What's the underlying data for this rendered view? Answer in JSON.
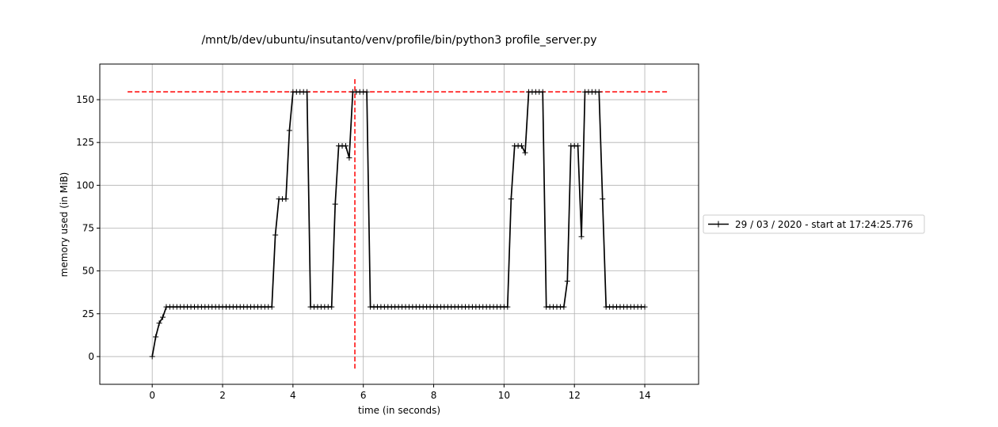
{
  "chart_data": {
    "type": "line",
    "title": "/mnt/b/dev/ubuntu/insutanto/venv/profile/bin/python3 profile_server.py",
    "xlabel": "time (in seconds)",
    "ylabel": "memory used (in MiB)",
    "xlim": [
      -1.49,
      15.53
    ],
    "ylim": [
      -16.2,
      170.8
    ],
    "xticks": [
      0,
      2,
      4,
      6,
      8,
      10,
      12,
      14
    ],
    "yticks": [
      0,
      25,
      50,
      75,
      100,
      125,
      150
    ],
    "grid": true,
    "legend_placement": "outside-right",
    "series": [
      {
        "name": "29 / 03 / 2020 - start at 17:24:25.776",
        "color": "#000000",
        "marker": "+",
        "x": [
          0.0,
          0.1,
          0.2,
          0.3,
          0.4,
          0.5,
          0.6,
          0.7,
          0.8,
          0.9,
          1.0,
          1.1,
          1.2,
          1.3,
          1.4,
          1.5,
          1.6,
          1.7,
          1.8,
          1.9,
          2.0,
          2.1,
          2.2,
          2.3,
          2.4,
          2.5,
          2.6,
          2.7,
          2.8,
          2.9,
          3.0,
          3.1,
          3.2,
          3.3,
          3.4,
          3.5,
          3.6,
          3.7,
          3.8,
          3.9,
          4.0,
          4.1,
          4.2,
          4.3,
          4.4,
          4.5,
          4.6,
          4.7,
          4.8,
          4.9,
          5.0,
          5.1,
          5.2,
          5.3,
          5.4,
          5.5,
          5.6,
          5.7,
          5.8,
          5.9,
          6.0,
          6.1,
          6.2,
          6.3,
          6.4,
          6.5,
          6.6,
          6.7,
          6.8,
          6.9,
          7.0,
          7.1,
          7.2,
          7.3,
          7.4,
          7.5,
          7.6,
          7.7,
          7.8,
          7.9,
          8.0,
          8.1,
          8.2,
          8.3,
          8.4,
          8.5,
          8.6,
          8.7,
          8.8,
          8.9,
          9.0,
          9.1,
          9.2,
          9.3,
          9.4,
          9.5,
          9.6,
          9.7,
          9.8,
          9.9,
          10.0,
          10.1,
          10.2,
          10.3,
          10.4,
          10.5,
          10.6,
          10.7,
          10.8,
          10.9,
          11.0,
          11.1,
          11.2,
          11.3,
          11.4,
          11.5,
          11.6,
          11.7,
          11.8,
          11.9,
          12.0,
          12.1,
          12.2,
          12.3,
          12.4,
          12.5,
          12.6,
          12.7,
          12.8,
          12.9,
          13.0,
          13.1,
          13.2,
          13.3,
          13.4,
          13.5,
          13.6,
          13.7,
          13.8,
          13.9,
          14.0
        ],
        "y": [
          0,
          11.5,
          19.5,
          23,
          29,
          29,
          29,
          29,
          29,
          29,
          29,
          29,
          29,
          29,
          29,
          29,
          29,
          29,
          29,
          29,
          29,
          29,
          29,
          29,
          29,
          29,
          29,
          29,
          29,
          29,
          29,
          29,
          29,
          29,
          29,
          71,
          92,
          92,
          92,
          132,
          154.5,
          154.5,
          154.5,
          154.5,
          154.5,
          29,
          29,
          29,
          29,
          29,
          29,
          29,
          89,
          123,
          123,
          123,
          116,
          154.5,
          154.5,
          154.5,
          154.5,
          154.5,
          29,
          29,
          29,
          29,
          29,
          29,
          29,
          29,
          29,
          29,
          29,
          29,
          29,
          29,
          29,
          29,
          29,
          29,
          29,
          29,
          29,
          29,
          29,
          29,
          29,
          29,
          29,
          29,
          29,
          29,
          29,
          29,
          29,
          29,
          29,
          29,
          29,
          29,
          29,
          29,
          92,
          123,
          123,
          123,
          119,
          154.5,
          154.5,
          154.5,
          154.5,
          154.5,
          29,
          29,
          29,
          29,
          29,
          29,
          44,
          123,
          123,
          123,
          70,
          154.5,
          154.5,
          154.5,
          154.5,
          154.5,
          92,
          29,
          29,
          29,
          29,
          29,
          29,
          29,
          29,
          29,
          29,
          29,
          29
        ]
      }
    ],
    "annotations": {
      "max_hline": {
        "y": 154.6,
        "x_from": -0.7,
        "x_to": 14.7,
        "color": "#ff0000",
        "style": "dashed"
      },
      "max_vline": {
        "x": 5.76,
        "y_from": -7,
        "y_to": 162,
        "color": "#ff0000",
        "style": "dashed"
      }
    }
  }
}
